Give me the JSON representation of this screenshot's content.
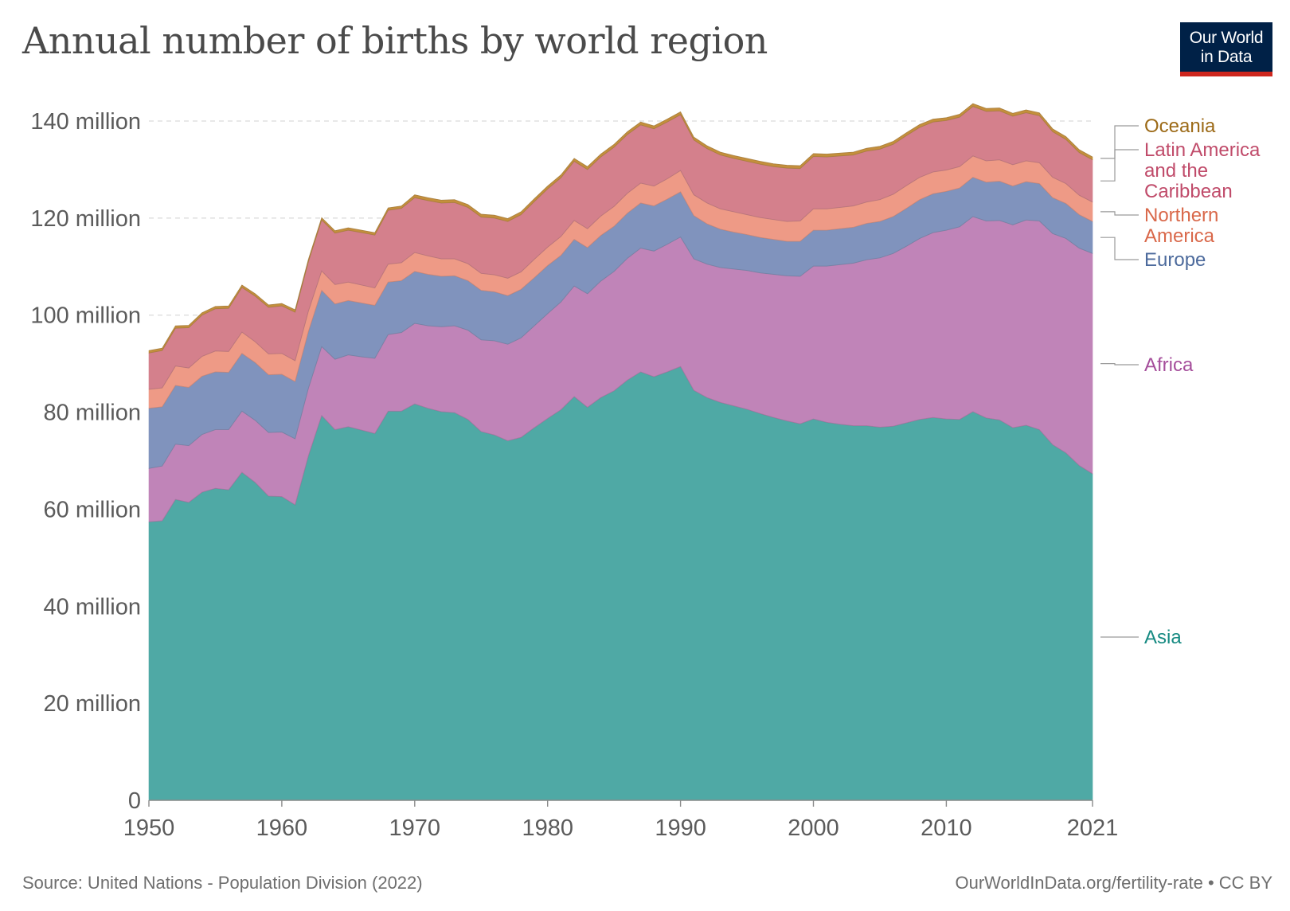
{
  "title": "Annual number of births by world region",
  "logo": {
    "line1": "Our World",
    "line2": "in Data"
  },
  "source": "Source: United Nations - Population Division (2022)",
  "license": "OurWorldInData.org/fertility-rate • CC BY",
  "colors": {
    "title": "#4a4a4a",
    "logo_bg": "#002147",
    "logo_bar": "#ce261e"
  },
  "chart_data": {
    "type": "area",
    "stacked": true,
    "x": [
      1950,
      1951,
      1952,
      1953,
      1954,
      1955,
      1956,
      1957,
      1958,
      1959,
      1960,
      1961,
      1962,
      1963,
      1964,
      1965,
      1966,
      1967,
      1968,
      1969,
      1970,
      1971,
      1972,
      1973,
      1974,
      1975,
      1976,
      1977,
      1978,
      1979,
      1980,
      1981,
      1982,
      1983,
      1984,
      1985,
      1986,
      1987,
      1988,
      1989,
      1990,
      1991,
      1992,
      1993,
      1994,
      1995,
      1996,
      1997,
      1998,
      1999,
      2000,
      2001,
      2002,
      2003,
      2004,
      2005,
      2006,
      2007,
      2008,
      2009,
      2010,
      2011,
      2012,
      2013,
      2014,
      2015,
      2016,
      2017,
      2018,
      2019,
      2020,
      2021
    ],
    "xticks": [
      "1950",
      "1960",
      "1970",
      "1980",
      "1990",
      "2000",
      "2010",
      "2021"
    ],
    "yticks": [
      "0",
      "20 million",
      "40 million",
      "60 million",
      "80 million",
      "100 million",
      "120 million",
      "140 million"
    ],
    "ylim": [
      0,
      140000000
    ],
    "grid": true,
    "series": [
      {
        "name": "Asia",
        "color": "#4fa9a5",
        "label_color": "#168a82",
        "values": [
          57.4,
          57.6,
          62.0,
          61.4,
          63.5,
          64.3,
          64.0,
          67.6,
          65.5,
          62.7,
          62.6,
          60.9,
          71.0,
          79.3,
          76.4,
          77.0,
          76.3,
          75.6,
          80.2,
          80.2,
          81.7,
          80.8,
          80.1,
          79.9,
          78.5,
          76.0,
          75.3,
          74.1,
          74.8,
          76.8,
          78.7,
          80.5,
          83.2,
          81.0,
          83.0,
          84.4,
          86.6,
          88.3,
          87.3,
          88.3,
          89.4,
          84.5,
          83.0,
          82.0,
          81.3,
          80.6,
          79.7,
          78.9,
          78.2,
          77.6,
          78.6,
          77.9,
          77.5,
          77.2,
          77.2,
          76.9,
          77.1,
          77.8,
          78.5,
          78.9,
          78.6,
          78.5,
          80.1,
          78.8,
          78.4,
          76.8,
          77.3,
          76.4,
          73.3,
          71.6,
          69.0,
          67.3
        ]
      },
      {
        "name": "Africa",
        "color": "#c084b8",
        "label_color": "#a54e9b",
        "values": [
          11.0,
          11.3,
          11.4,
          11.7,
          11.9,
          12.1,
          12.4,
          12.6,
          12.8,
          13.1,
          13.3,
          13.6,
          13.9,
          14.2,
          14.5,
          14.8,
          15.1,
          15.5,
          15.8,
          16.2,
          16.6,
          17.0,
          17.5,
          17.9,
          18.4,
          18.9,
          19.4,
          19.9,
          20.5,
          21.0,
          21.6,
          22.2,
          22.8,
          23.4,
          24.0,
          24.6,
          25.1,
          25.5,
          25.9,
          26.3,
          26.7,
          27.1,
          27.5,
          27.8,
          28.2,
          28.6,
          29.0,
          29.5,
          29.9,
          30.4,
          31.5,
          32.2,
          32.9,
          33.5,
          34.2,
          34.9,
          35.6,
          36.4,
          37.3,
          38.1,
          38.9,
          39.7,
          40.2,
          40.6,
          41.1,
          41.8,
          42.3,
          43.0,
          43.5,
          44.2,
          44.8,
          45.4
        ]
      },
      {
        "name": "Europe",
        "color": "#8093bd",
        "label_color": "#4c6a9c",
        "values": [
          12.4,
          12.2,
          12.1,
          12.0,
          12.0,
          11.9,
          11.8,
          11.9,
          11.9,
          11.9,
          11.9,
          11.8,
          11.7,
          11.6,
          11.4,
          11.2,
          11.1,
          10.9,
          10.8,
          10.7,
          10.7,
          10.6,
          10.4,
          10.3,
          10.2,
          10.2,
          10.1,
          10.0,
          10.0,
          9.9,
          9.9,
          9.6,
          9.6,
          9.5,
          9.4,
          9.3,
          9.3,
          9.3,
          9.3,
          9.3,
          9.3,
          8.9,
          8.3,
          7.9,
          7.6,
          7.4,
          7.3,
          7.2,
          7.1,
          7.2,
          7.4,
          7.4,
          7.4,
          7.4,
          7.5,
          7.5,
          7.6,
          7.8,
          8.0,
          8.0,
          8.0,
          8.0,
          8.1,
          8.0,
          8.1,
          8.0,
          7.9,
          7.7,
          7.4,
          7.2,
          6.9,
          6.6
        ]
      },
      {
        "name": "Northern America",
        "color": "#ee9a86",
        "label_color": "#d9684a",
        "values": [
          3.9,
          3.9,
          4.0,
          4.0,
          4.1,
          4.3,
          4.3,
          4.4,
          4.3,
          4.3,
          4.3,
          4.3,
          4.2,
          4.0,
          4.0,
          3.8,
          3.7,
          3.6,
          3.7,
          3.7,
          3.9,
          3.8,
          3.6,
          3.5,
          3.5,
          3.5,
          3.5,
          3.6,
          3.6,
          3.8,
          3.8,
          3.9,
          3.9,
          3.9,
          4.0,
          4.1,
          4.1,
          4.1,
          4.1,
          4.2,
          4.4,
          4.3,
          4.3,
          4.2,
          4.2,
          4.1,
          4.1,
          4.1,
          4.1,
          4.2,
          4.4,
          4.4,
          4.4,
          4.4,
          4.4,
          4.5,
          4.6,
          4.7,
          4.6,
          4.5,
          4.4,
          4.4,
          4.4,
          4.4,
          4.4,
          4.4,
          4.3,
          4.3,
          4.2,
          4.1,
          4.0,
          4.0
        ]
      },
      {
        "name": "Latin America and the Caribbean",
        "color": "#d4808c",
        "label_color": "#c04b6a",
        "values": [
          7.5,
          7.7,
          7.8,
          8.3,
          8.5,
          8.7,
          8.9,
          9.2,
          9.4,
          9.6,
          9.8,
          10.0,
          10.2,
          10.5,
          10.6,
          10.7,
          10.8,
          10.9,
          11.1,
          11.2,
          11.3,
          11.4,
          11.5,
          11.6,
          11.6,
          11.6,
          11.7,
          11.7,
          11.8,
          11.9,
          12.0,
          12.1,
          12.2,
          12.2,
          12.2,
          12.2,
          12.1,
          12.0,
          11.8,
          11.7,
          11.5,
          11.3,
          11.2,
          11.1,
          11.0,
          11.0,
          11.0,
          10.9,
          11.0,
          10.8,
          10.8,
          10.7,
          10.6,
          10.5,
          10.5,
          10.4,
          10.3,
          10.3,
          10.3,
          10.3,
          10.2,
          10.2,
          10.2,
          10.2,
          10.1,
          10.0,
          9.9,
          9.7,
          9.4,
          9.1,
          8.8,
          8.7
        ]
      },
      {
        "name": "Oceania",
        "color": "#c48f3c",
        "label_color": "#9c6a17",
        "values": [
          0.5,
          0.5,
          0.5,
          0.5,
          0.5,
          0.5,
          0.5,
          0.5,
          0.5,
          0.5,
          0.5,
          0.5,
          0.5,
          0.5,
          0.5,
          0.5,
          0.5,
          0.5,
          0.5,
          0.5,
          0.6,
          0.6,
          0.6,
          0.6,
          0.6,
          0.6,
          0.6,
          0.6,
          0.6,
          0.6,
          0.6,
          0.6,
          0.6,
          0.6,
          0.6,
          0.6,
          0.6,
          0.6,
          0.6,
          0.6,
          0.6,
          0.6,
          0.6,
          0.6,
          0.6,
          0.6,
          0.6,
          0.6,
          0.6,
          0.6,
          0.6,
          0.6,
          0.6,
          0.6,
          0.6,
          0.6,
          0.6,
          0.6,
          0.6,
          0.6,
          0.6,
          0.6,
          0.6,
          0.6,
          0.6,
          0.6,
          0.6,
          0.6,
          0.6,
          0.6,
          0.6,
          0.6
        ]
      }
    ],
    "legend": [
      {
        "lines": [
          "Oceania"
        ],
        "series": "Oceania"
      },
      {
        "lines": [
          "Latin America",
          "and the",
          "Caribbean"
        ],
        "series": "Latin America and the Caribbean"
      },
      {
        "lines": [
          "Northern",
          "America"
        ],
        "series": "Northern America"
      },
      {
        "lines": [
          "Europe"
        ],
        "series": "Europe"
      },
      {
        "lines": [
          "Africa"
        ],
        "series": "Africa"
      },
      {
        "lines": [
          "Asia"
        ],
        "series": "Asia"
      }
    ],
    "legend_placement": "right"
  }
}
